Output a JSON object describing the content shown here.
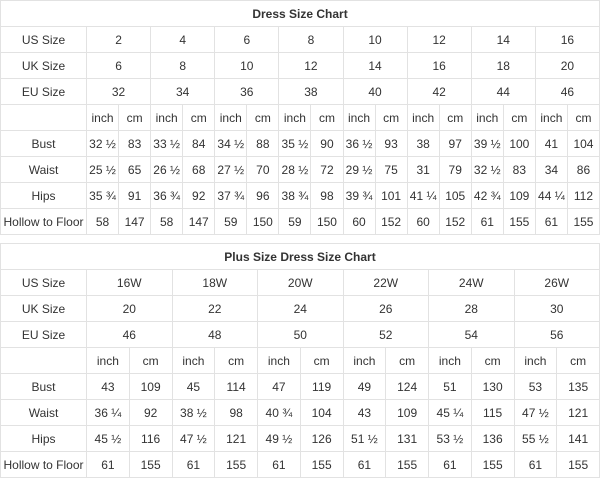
{
  "colors": {
    "stripe": "#eeeeee",
    "border": "#e2e2e2",
    "text": "#333333",
    "title_text": "#000000",
    "background": "#ffffff"
  },
  "tables": [
    {
      "title": "Dress Size Chart",
      "size_rows": [
        {
          "label": "US Size",
          "values": [
            "2",
            "4",
            "6",
            "8",
            "10",
            "12",
            "14",
            "16"
          ]
        },
        {
          "label": "UK Size",
          "values": [
            "6",
            "8",
            "10",
            "12",
            "14",
            "16",
            "18",
            "20"
          ]
        },
        {
          "label": "EU Size",
          "values": [
            "32",
            "34",
            "36",
            "38",
            "40",
            "42",
            "44",
            "46"
          ]
        }
      ],
      "unit_labels": [
        "inch",
        "cm"
      ],
      "measurement_rows": [
        {
          "label": "Bust",
          "inch": [
            "32 ½",
            "33 ½",
            "34 ½",
            "35 ½",
            "36 ½",
            "38",
            "39 ½",
            "41"
          ],
          "cm": [
            "83",
            "84",
            "88",
            "90",
            "93",
            "97",
            "100",
            "104"
          ]
        },
        {
          "label": "Waist",
          "inch": [
            "25 ½",
            "26 ½",
            "27 ½",
            "28 ½",
            "29 ½",
            "31",
            "32 ½",
            "34"
          ],
          "cm": [
            "65",
            "68",
            "70",
            "72",
            "75",
            "79",
            "83",
            "86"
          ]
        },
        {
          "label": "Hips",
          "inch": [
            "35 ¾",
            "36 ¾",
            "37 ¾",
            "38 ¾",
            "39 ¾",
            "41 ¼",
            "42 ¾",
            "44 ¼"
          ],
          "cm": [
            "91",
            "92",
            "96",
            "98",
            "101",
            "105",
            "109",
            "112"
          ]
        },
        {
          "label": "Hollow to Floor",
          "inch": [
            "58",
            "58",
            "59",
            "59",
            "60",
            "60",
            "61",
            "61"
          ],
          "cm": [
            "147",
            "147",
            "150",
            "150",
            "152",
            "152",
            "155",
            "155"
          ]
        }
      ]
    },
    {
      "title": "Plus Size Dress Size Chart",
      "size_rows": [
        {
          "label": "US Size",
          "values": [
            "16W",
            "18W",
            "20W",
            "22W",
            "24W",
            "26W"
          ]
        },
        {
          "label": "UK Size",
          "values": [
            "20",
            "22",
            "24",
            "26",
            "28",
            "30"
          ]
        },
        {
          "label": "EU Size",
          "values": [
            "46",
            "48",
            "50",
            "52",
            "54",
            "56"
          ]
        }
      ],
      "unit_labels": [
        "inch",
        "cm"
      ],
      "measurement_rows": [
        {
          "label": "Bust",
          "inch": [
            "43",
            "45",
            "47",
            "49",
            "51",
            "53"
          ],
          "cm": [
            "109",
            "114",
            "119",
            "124",
            "130",
            "135"
          ]
        },
        {
          "label": "Waist",
          "inch": [
            "36 ¼",
            "38 ½",
            "40 ¾",
            "43",
            "45 ¼",
            "47 ½"
          ],
          "cm": [
            "92",
            "98",
            "104",
            "109",
            "115",
            "121"
          ]
        },
        {
          "label": "Hips",
          "inch": [
            "45 ½",
            "47 ½",
            "49 ½",
            "51 ½",
            "53 ½",
            "55 ½"
          ],
          "cm": [
            "116",
            "121",
            "126",
            "131",
            "136",
            "141"
          ]
        },
        {
          "label": "Hollow to Floor",
          "inch": [
            "61",
            "61",
            "61",
            "61",
            "61",
            "61"
          ],
          "cm": [
            "155",
            "155",
            "155",
            "155",
            "155",
            "155"
          ]
        }
      ]
    }
  ]
}
